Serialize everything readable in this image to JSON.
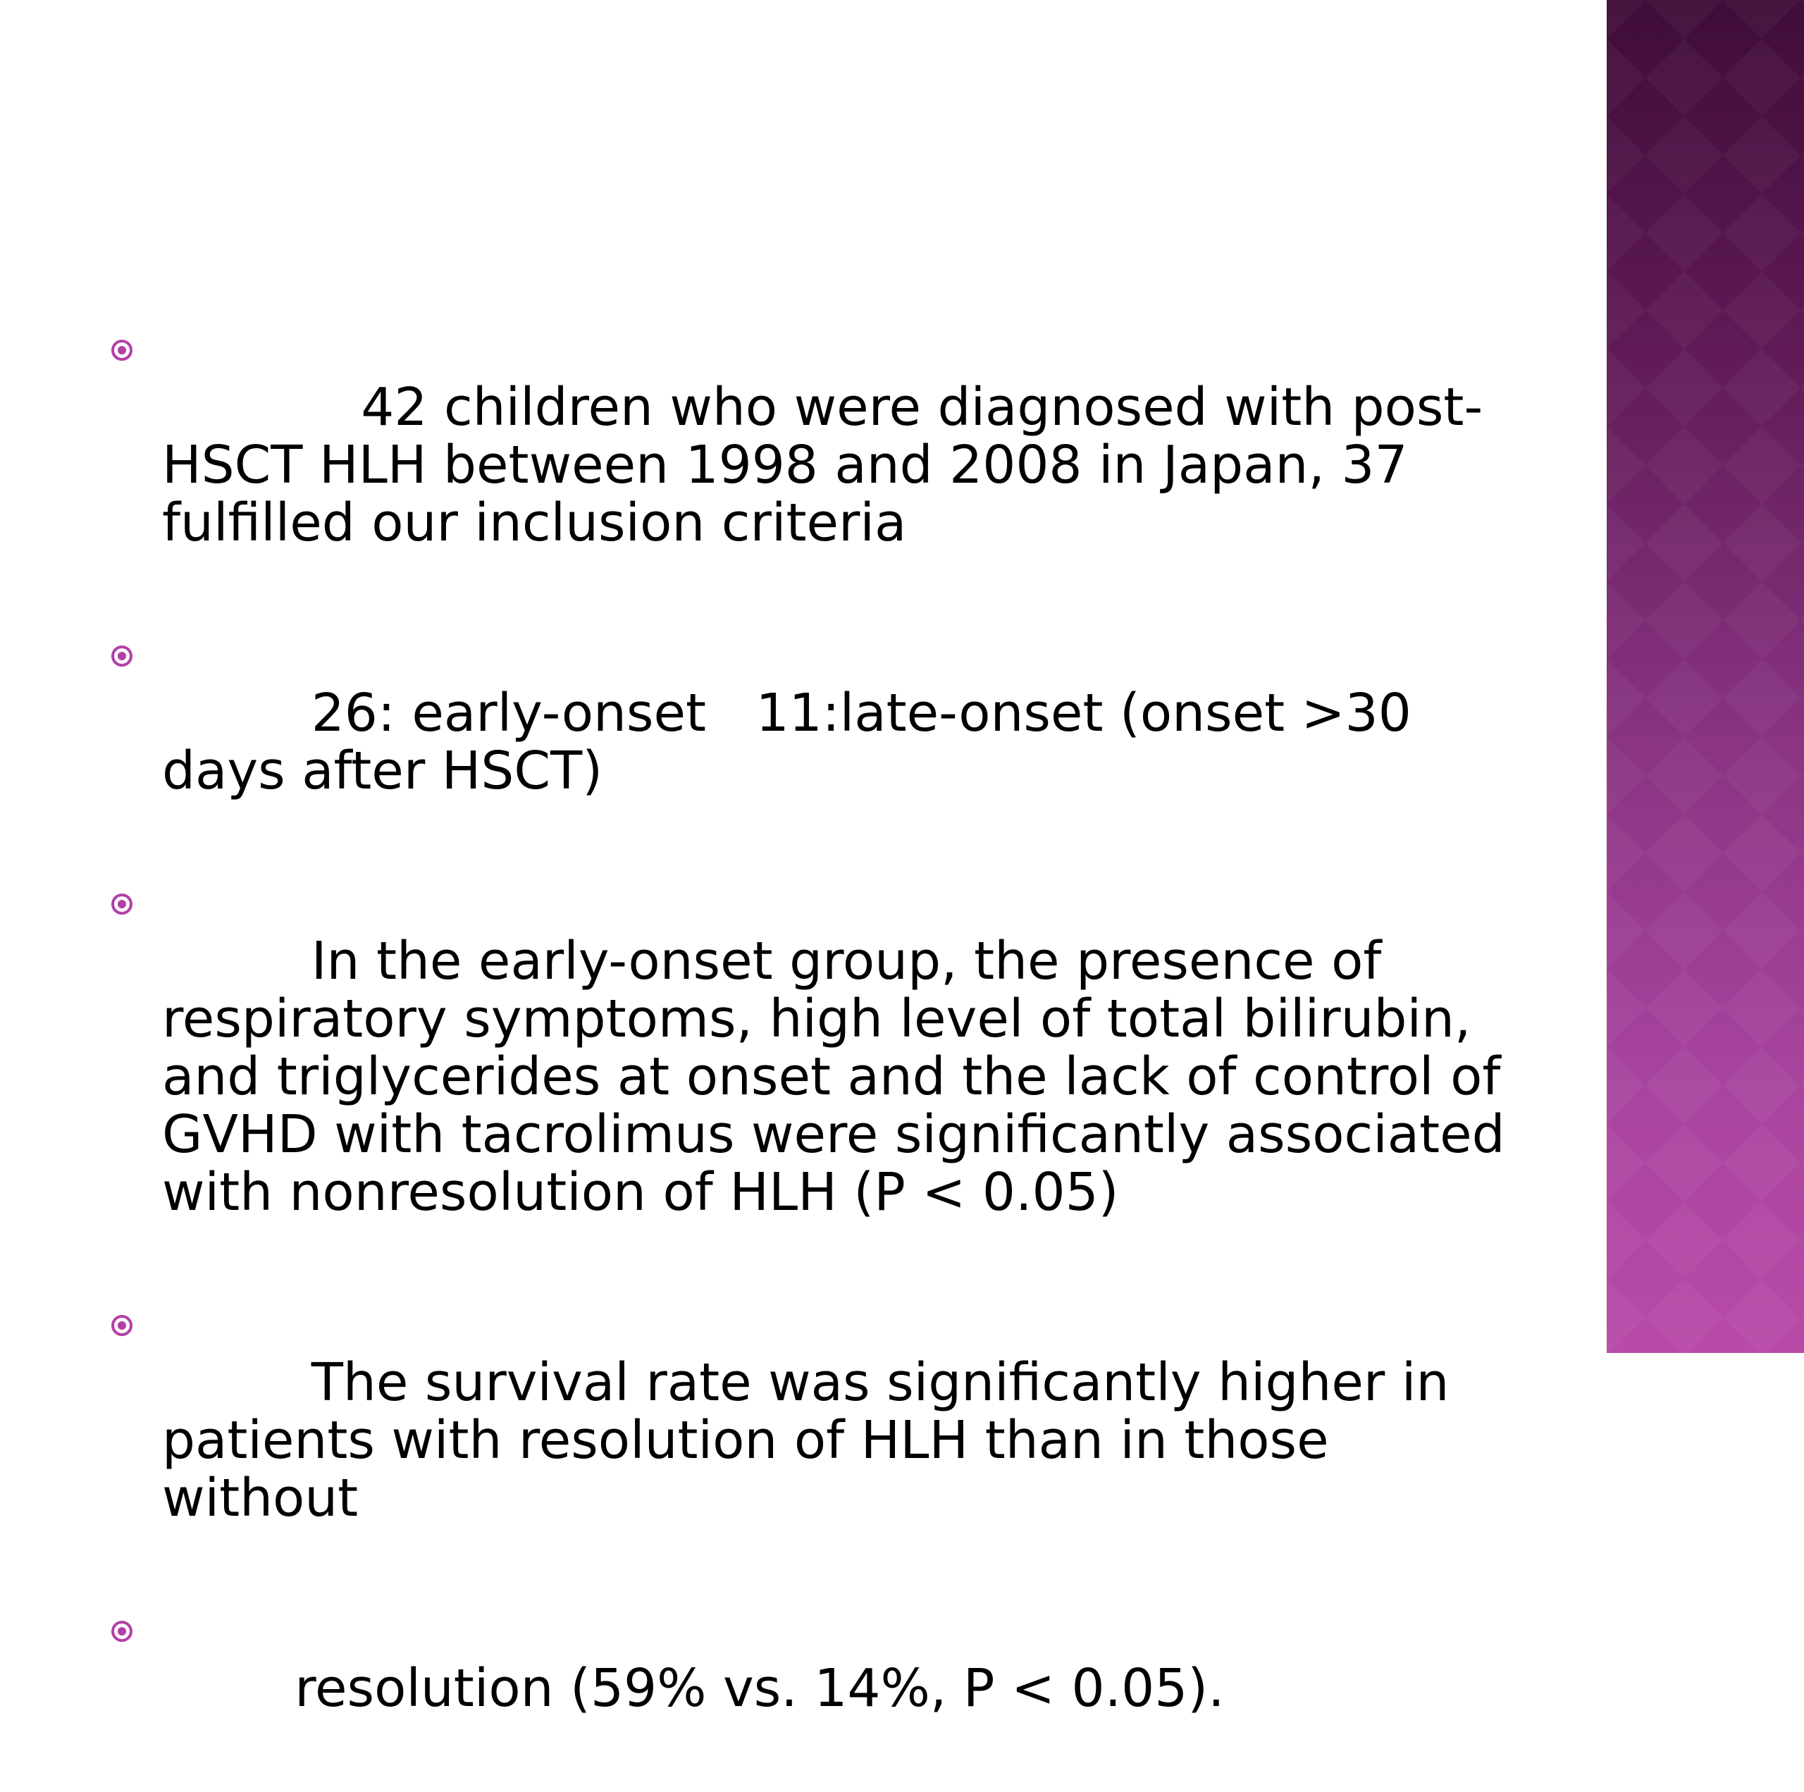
{
  "slide": {
    "bullets": [
      {
        "text": "    42 children who were diagnosed with post-HSCT HLH between 1998 and 2008 in Japan, 37 fulfilled our inclusion criteria"
      },
      {
        "text": " 26: early-onset   11:late-onset (onset >30 days after HSCT)"
      },
      {
        "text": " In the early-onset group, the presence of respiratory symptoms, high level of total bilirubin, and triglycerides at onset and the lack of control of GVHD with tacrolimus were significantly associated with nonresolution of HLH (P < 0.05)"
      },
      {
        "text": " The survival rate was significantly higher in patients with resolution of HLH than in those without"
      },
      {
        "text": "resolution (59% vs. 14%, P < 0.05)."
      }
    ]
  },
  "theme": {
    "accent": "#b43fa6",
    "band_top": "#3f0c38",
    "band_bottom": "#b84aa8",
    "bullet_icon": "radio-bullet-icon"
  }
}
